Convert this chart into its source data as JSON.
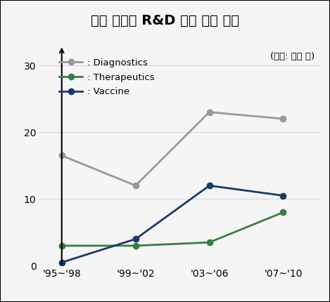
{
  "title": "주요 분야의 R&D 연구 활동 동향",
  "unit_label": "(단위: 논문 수)",
  "x_labels": [
    "'95~'98",
    "'99~'02",
    "'03~'06",
    "'07~'10"
  ],
  "diagnostics": [
    16.5,
    12,
    23,
    22
  ],
  "therapeutics": [
    3,
    3,
    3.5,
    8
  ],
  "vaccine": [
    0.5,
    4,
    12,
    10.5
  ],
  "diagnostics_color": "#999999",
  "therapeutics_color": "#3a7d44",
  "vaccine_color": "#1a3a6b",
  "ylim": [
    0,
    33
  ],
  "yticks": [
    0,
    10,
    20,
    30
  ],
  "bg_title": "#d0d0d0",
  "bg_plot": "#f5f5f5",
  "legend_diagnostics": ": Diagnostics",
  "legend_therapeutics": ": Therapeutics",
  "legend_vaccine": ": Vaccine"
}
